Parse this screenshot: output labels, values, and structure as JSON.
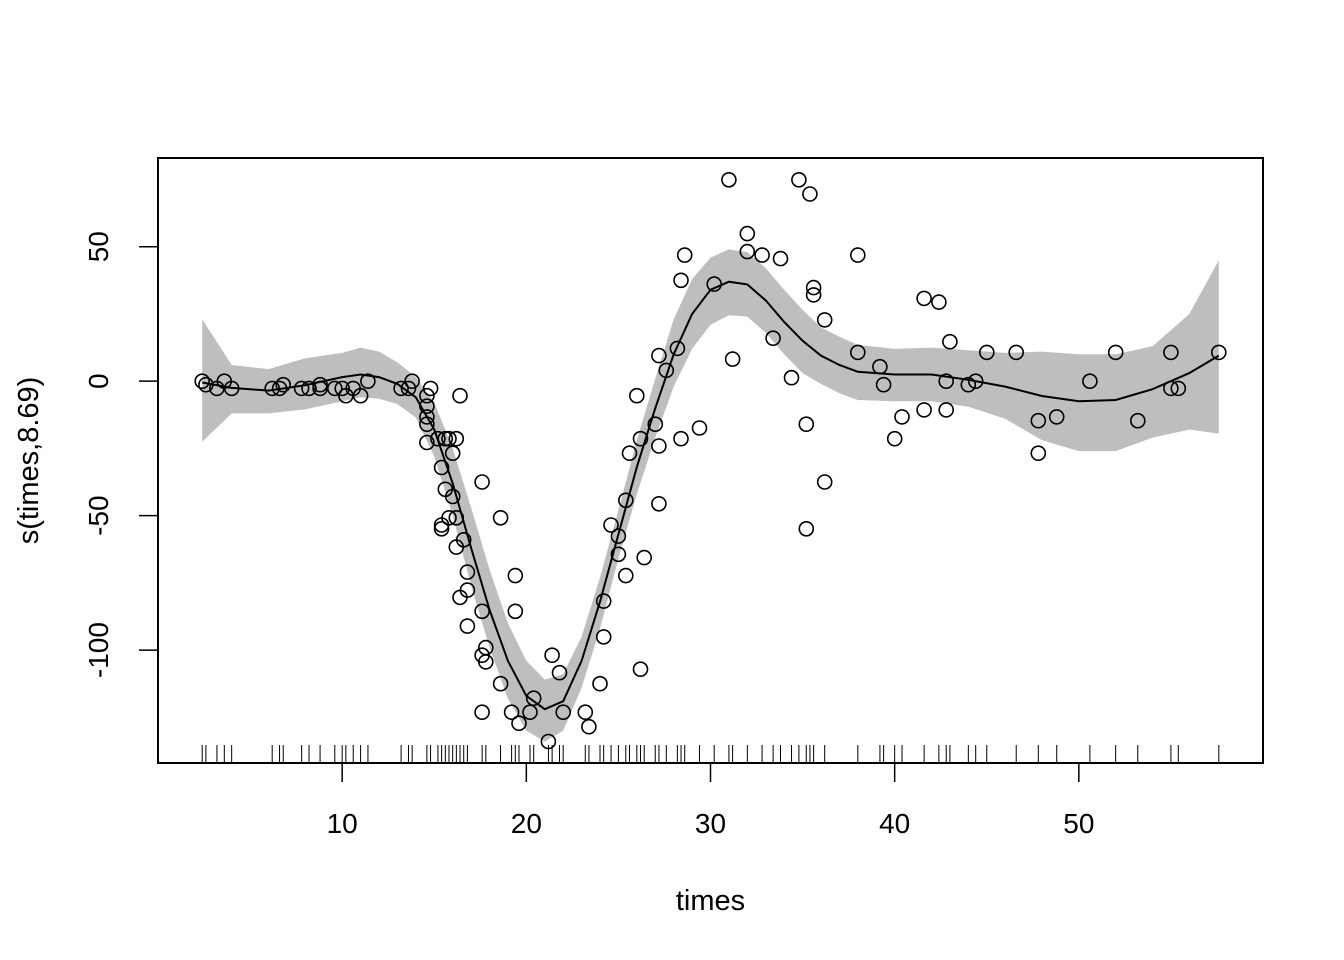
{
  "chart_data": {
    "type": "scatter",
    "title": "",
    "xlabel": "times",
    "ylabel": "s(times,8.69)",
    "xlim": [
      0,
      60
    ],
    "ylim": [
      -142,
      83
    ],
    "x_ticks": [
      10,
      20,
      30,
      40,
      50
    ],
    "y_ticks": [
      -100,
      -50,
      0,
      50
    ],
    "grid": false,
    "points": [
      [
        2.4,
        0
      ],
      [
        2.6,
        -1.3
      ],
      [
        3.2,
        -2.7
      ],
      [
        3.6,
        0
      ],
      [
        4.0,
        -2.7
      ],
      [
        6.2,
        -2.7
      ],
      [
        6.6,
        -2.7
      ],
      [
        6.8,
        -1.3
      ],
      [
        7.8,
        -2.7
      ],
      [
        8.2,
        -2.7
      ],
      [
        8.8,
        -1.3
      ],
      [
        8.8,
        -2.7
      ],
      [
        9.6,
        -2.7
      ],
      [
        10.0,
        -2.7
      ],
      [
        10.2,
        -5.4
      ],
      [
        10.6,
        -2.7
      ],
      [
        11.0,
        -5.4
      ],
      [
        11.4,
        0
      ],
      [
        13.2,
        -2.7
      ],
      [
        13.6,
        -2.7
      ],
      [
        13.8,
        0
      ],
      [
        14.6,
        -5.4
      ],
      [
        14.6,
        -9.3
      ],
      [
        14.6,
        -13.3
      ],
      [
        14.6,
        -16
      ],
      [
        14.6,
        -22.8
      ],
      [
        14.8,
        -2.7
      ],
      [
        15.2,
        -21.4
      ],
      [
        15.4,
        -32.1
      ],
      [
        15.4,
        -53.5
      ],
      [
        15.4,
        -54.9
      ],
      [
        15.6,
        -21.4
      ],
      [
        15.6,
        -40.2
      ],
      [
        15.8,
        -21.4
      ],
      [
        15.8,
        -50.8
      ],
      [
        16.0,
        -26.8
      ],
      [
        16.0,
        -42.9
      ],
      [
        16.2,
        -21.4
      ],
      [
        16.2,
        -50.8
      ],
      [
        16.2,
        -61.7
      ],
      [
        16.4,
        -5.4
      ],
      [
        16.4,
        -80.4
      ],
      [
        16.6,
        -59.0
      ],
      [
        16.8,
        -71.0
      ],
      [
        16.8,
        -77.7
      ],
      [
        16.8,
        -91.1
      ],
      [
        17.6,
        -37.5
      ],
      [
        17.6,
        -85.6
      ],
      [
        17.6,
        -101.9
      ],
      [
        17.6,
        -123.1
      ],
      [
        17.8,
        -99.1
      ],
      [
        17.8,
        -104.4
      ],
      [
        18.6,
        -50.8
      ],
      [
        18.6,
        -112.5
      ],
      [
        19.2,
        -123.1
      ],
      [
        19.4,
        -72.3
      ],
      [
        19.4,
        -85.6
      ],
      [
        19.6,
        -127.2
      ],
      [
        20.2,
        -123.1
      ],
      [
        20.4,
        -117.9
      ],
      [
        21.2,
        -134.0
      ],
      [
        21.4,
        -101.9
      ],
      [
        21.8,
        -108.4
      ],
      [
        22.0,
        -123.1
      ],
      [
        23.2,
        -123.1
      ],
      [
        23.4,
        -128.5
      ],
      [
        24.0,
        -112.5
      ],
      [
        24.2,
        -81.8
      ],
      [
        24.2,
        -95.1
      ],
      [
        24.6,
        -53.5
      ],
      [
        25.0,
        -57.6
      ],
      [
        25.0,
        -64.4
      ],
      [
        25.4,
        -44.3
      ],
      [
        25.4,
        -72.3
      ],
      [
        25.6,
        -26.8
      ],
      [
        26.0,
        -5.4
      ],
      [
        26.2,
        -21.4
      ],
      [
        26.2,
        -107.1
      ],
      [
        26.4,
        -65.6
      ],
      [
        27.0,
        -16.0
      ],
      [
        27.2,
        9.5
      ],
      [
        27.2,
        -24.1
      ],
      [
        27.2,
        -45.6
      ],
      [
        27.6,
        4.0
      ],
      [
        28.2,
        12.2
      ],
      [
        28.4,
        37.5
      ],
      [
        28.4,
        -21.4
      ],
      [
        28.6,
        46.9
      ],
      [
        29.4,
        -17.4
      ],
      [
        30.2,
        36.1
      ],
      [
        31.0,
        74.9
      ],
      [
        31.2,
        8.2
      ],
      [
        32.0,
        54.9
      ],
      [
        32.0,
        48.2
      ],
      [
        32.8,
        46.9
      ],
      [
        33.4,
        16.0
      ],
      [
        33.8,
        45.6
      ],
      [
        34.4,
        1.3
      ],
      [
        34.8,
        74.9
      ],
      [
        35.2,
        -16.0
      ],
      [
        35.2,
        -54.9
      ],
      [
        35.4,
        69.6
      ],
      [
        35.6,
        34.8
      ],
      [
        35.6,
        32.1
      ],
      [
        36.2,
        22.8
      ],
      [
        36.2,
        -37.5
      ],
      [
        38.0,
        46.9
      ],
      [
        38.0,
        10.7
      ],
      [
        39.2,
        5.4
      ],
      [
        39.4,
        -1.3
      ],
      [
        40.0,
        -21.4
      ],
      [
        40.4,
        -13.3
      ],
      [
        41.6,
        30.8
      ],
      [
        41.6,
        -10.7
      ],
      [
        42.4,
        29.4
      ],
      [
        42.8,
        0
      ],
      [
        42.8,
        -10.7
      ],
      [
        43.0,
        14.7
      ],
      [
        44.0,
        -1.3
      ],
      [
        44.4,
        0
      ],
      [
        45.0,
        10.7
      ],
      [
        46.6,
        10.7
      ],
      [
        47.8,
        -14.7
      ],
      [
        47.8,
        -26.8
      ],
      [
        48.8,
        -13.3
      ],
      [
        50.6,
        0
      ],
      [
        52.0,
        10.7
      ],
      [
        53.2,
        -14.7
      ],
      [
        55.0,
        10.7
      ],
      [
        55.0,
        -2.7
      ],
      [
        55.4,
        -2.7
      ],
      [
        57.6,
        10.7
      ]
    ],
    "fit_line": {
      "x": [
        2.4,
        4,
        6,
        8,
        10,
        11,
        12,
        13,
        14,
        15,
        16,
        17,
        18,
        19,
        20,
        21,
        22,
        23,
        24,
        25,
        26,
        27,
        28,
        29,
        30,
        31,
        32,
        33,
        34,
        35,
        36,
        37,
        38,
        40,
        42,
        44,
        46,
        48,
        50,
        52,
        54,
        56,
        57.6
      ],
      "y": [
        -0.5,
        -2.5,
        -3.5,
        -1.5,
        1.5,
        2.5,
        1.5,
        -1,
        -6,
        -18,
        -38,
        -62,
        -85,
        -104,
        -117,
        -122,
        -119,
        -104,
        -82,
        -57,
        -32,
        -10,
        10,
        25,
        34,
        37,
        36,
        30,
        22,
        15,
        9.5,
        6,
        3.5,
        2.5,
        2.5,
        0.5,
        -2,
        -5.5,
        -7.5,
        -7,
        -3,
        3,
        9.5
      ]
    },
    "confidence_band": {
      "x": [
        2.4,
        4,
        6,
        8,
        10,
        11,
        12,
        13,
        14,
        15,
        16,
        17,
        18,
        19,
        20,
        21,
        22,
        23,
        24,
        25,
        26,
        27,
        28,
        29,
        30,
        31,
        32,
        33,
        34,
        35,
        36,
        37,
        38,
        40,
        42,
        44,
        46,
        48,
        50,
        52,
        54,
        56,
        57.6
      ],
      "upper": [
        23,
        6,
        4.5,
        8.5,
        10.5,
        12.5,
        11,
        7,
        1.5,
        -8,
        -25,
        -47,
        -70,
        -90,
        -104,
        -111,
        -109,
        -95,
        -73,
        -48,
        -22,
        1,
        23,
        38,
        46,
        49,
        48,
        42,
        34,
        26.5,
        20,
        16.5,
        13.5,
        12,
        12.5,
        11.5,
        10.5,
        11,
        10,
        10,
        13,
        25,
        45
      ],
      "lower": [
        -22.5,
        -12,
        -12,
        -10.5,
        -7.5,
        -6,
        -6.5,
        -8.5,
        -13.5,
        -28,
        -50,
        -76,
        -99,
        -118,
        -130,
        -134,
        -130,
        -114,
        -92,
        -66,
        -42,
        -21,
        -2,
        12,
        21,
        24.5,
        24,
        18,
        10,
        3,
        -1,
        -4.5,
        -7,
        -7.5,
        -7.5,
        -9.5,
        -14,
        -22,
        -26,
        -26,
        -21,
        -18,
        -19.5
      ]
    },
    "rug": true
  }
}
